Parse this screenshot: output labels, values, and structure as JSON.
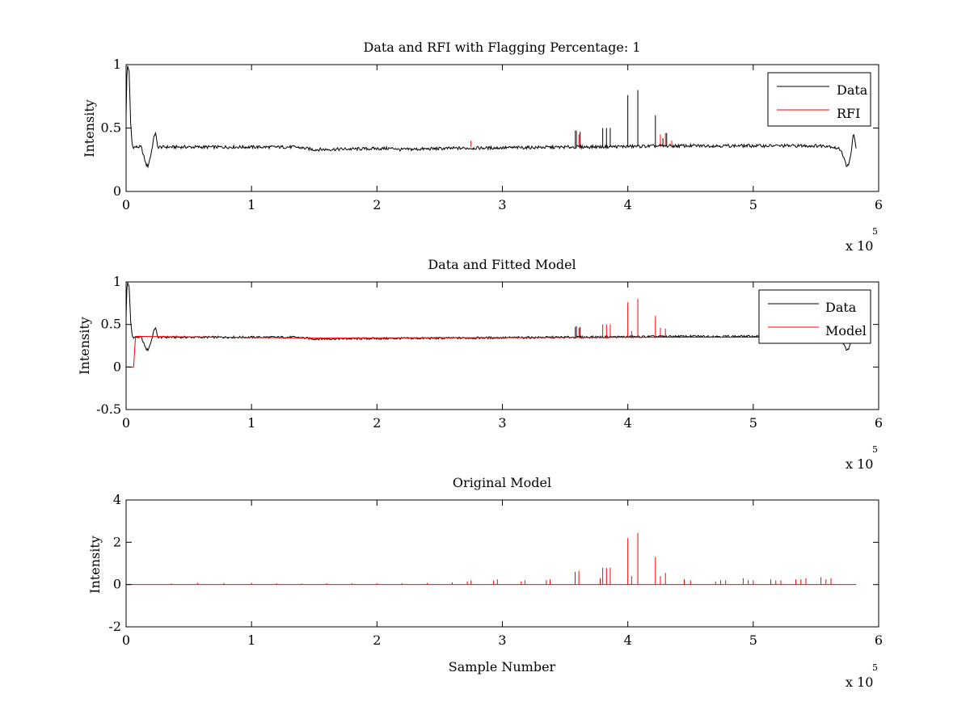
{
  "figure": {
    "background": "#ffffff"
  },
  "colors": {
    "data": "#000000",
    "model": "#ff0000",
    "axes": "#000000"
  },
  "chart_data": [
    {
      "type": "line",
      "title": "Data and RFI with Flagging Percentage: 1",
      "xlabel": "",
      "ylabel": "Intensity",
      "xlim": [
        0,
        600000
      ],
      "ylim": [
        0,
        1
      ],
      "xticks": [
        0,
        1,
        2,
        3,
        4,
        5,
        6
      ],
      "yticks": [
        0,
        0.5,
        1
      ],
      "xtick_labels": [
        "0",
        "1",
        "2",
        "3",
        "4",
        "5",
        "6"
      ],
      "ytick_labels": [
        "0",
        "0.5",
        "1"
      ],
      "x_exponent_label": "x 10",
      "x_exponent_power": "5",
      "legend_position": "top-right",
      "legend": [
        "Data",
        "RFI"
      ],
      "series": [
        {
          "name": "Data",
          "color": "#000000",
          "baseline": 0.35,
          "profile": [
            [
              0,
              0.6
            ],
            [
              800,
              1.0
            ],
            [
              2500,
              0.95
            ],
            [
              3500,
              0.55
            ],
            [
              5000,
              0.35
            ],
            [
              12000,
              0.35
            ],
            [
              16000,
              0.21
            ],
            [
              17500,
              0.2
            ],
            [
              20000,
              0.3
            ],
            [
              22000,
              0.42
            ],
            [
              23500,
              0.47
            ],
            [
              25000,
              0.35
            ],
            [
              135000,
              0.35
            ],
            [
              150000,
              0.33
            ],
            [
              215000,
              0.34
            ],
            [
              217000,
              0.33
            ],
            [
              260000,
              0.34
            ],
            [
              450000,
              0.36
            ],
            [
              560000,
              0.36
            ],
            [
              570000,
              0.33
            ],
            [
              574000,
              0.21
            ],
            [
              576000,
              0.2
            ],
            [
              578000,
              0.3
            ],
            [
              580000,
              0.47
            ],
            [
              582000,
              0.33
            ]
          ],
          "spikes": [
            [
              359000,
              0.48
            ],
            [
              362000,
              0.47
            ],
            [
              380000,
              0.5
            ],
            [
              383000,
              0.5
            ],
            [
              386000,
              0.5
            ],
            [
              400000,
              0.76
            ],
            [
              408000,
              0.8
            ],
            [
              422000,
              0.6
            ],
            [
              428000,
              0.42
            ],
            [
              431000,
              0.46
            ]
          ]
        },
        {
          "name": "RFI",
          "color": "#ff0000",
          "spikes": [
            [
              275000,
              0.4
            ],
            [
              358000,
              0.48
            ],
            [
              361000,
              0.45
            ],
            [
              426000,
              0.45
            ],
            [
              430000,
              0.46
            ],
            [
              435000,
              0.4
            ]
          ]
        }
      ]
    },
    {
      "type": "line",
      "title": "Data and Fitted Model",
      "xlabel": "",
      "ylabel": "Intensity",
      "xlim": [
        0,
        600000
      ],
      "ylim": [
        -0.5,
        1
      ],
      "xticks": [
        0,
        1,
        2,
        3,
        4,
        5,
        6
      ],
      "yticks": [
        -0.5,
        0,
        0.5,
        1
      ],
      "xtick_labels": [
        "0",
        "1",
        "2",
        "3",
        "4",
        "5",
        "6"
      ],
      "ytick_labels": [
        "-0.5",
        "0",
        "0.5",
        "1"
      ],
      "x_exponent_label": "x 10",
      "x_exponent_power": "5",
      "legend_position": "top-right",
      "legend": [
        "Data",
        "Model"
      ],
      "series": [
        {
          "name": "Data",
          "color": "#000000",
          "baseline": 0.35,
          "profile": [
            [
              0,
              0.6
            ],
            [
              800,
              1.0
            ],
            [
              2500,
              0.95
            ],
            [
              3500,
              0.55
            ],
            [
              5000,
              0.35
            ],
            [
              12000,
              0.35
            ],
            [
              16000,
              0.21
            ],
            [
              17500,
              0.2
            ],
            [
              20000,
              0.3
            ],
            [
              22000,
              0.42
            ],
            [
              23500,
              0.47
            ],
            [
              25000,
              0.35
            ],
            [
              135000,
              0.35
            ],
            [
              150000,
              0.33
            ],
            [
              260000,
              0.34
            ],
            [
              450000,
              0.36
            ],
            [
              560000,
              0.36
            ],
            [
              570000,
              0.33
            ],
            [
              574000,
              0.21
            ],
            [
              576000,
              0.2
            ],
            [
              578000,
              0.3
            ],
            [
              580000,
              0.47
            ],
            [
              582000,
              0.33
            ]
          ],
          "spikes": [
            [
              359000,
              0.48
            ],
            [
              362000,
              0.47
            ]
          ]
        },
        {
          "name": "Model",
          "color": "#ff0000",
          "profile": [
            [
              0,
              0.0
            ],
            [
              6000,
              0.0
            ],
            [
              6500,
              0.36
            ],
            [
              150000,
              0.34
            ],
            [
              450000,
              0.35
            ],
            [
              580000,
              0.35
            ]
          ],
          "spikes": [
            [
              358000,
              0.47
            ],
            [
              361000,
              0.46
            ],
            [
              380000,
              0.5
            ],
            [
              383000,
              0.5
            ],
            [
              386000,
              0.5
            ],
            [
              400000,
              0.76
            ],
            [
              403000,
              0.42
            ],
            [
              408000,
              0.8
            ],
            [
              422000,
              0.6
            ],
            [
              426000,
              0.46
            ],
            [
              430000,
              0.45
            ]
          ]
        }
      ]
    },
    {
      "type": "line",
      "title": "Original Model",
      "xlabel": "Sample Number",
      "ylabel": "Intensity",
      "xlim": [
        0,
        600000
      ],
      "ylim": [
        -2,
        4
      ],
      "xticks": [
        0,
        1,
        2,
        3,
        4,
        5,
        6
      ],
      "yticks": [
        -2,
        0,
        2,
        4
      ],
      "xtick_labels": [
        "0",
        "1",
        "2",
        "3",
        "4",
        "5",
        "6"
      ],
      "ytick_labels": [
        "-2",
        "0",
        "2",
        "4"
      ],
      "x_exponent_label": "x 10",
      "x_exponent_power": "5",
      "series": [
        {
          "name": "Model",
          "color": "#ff0000",
          "profile": [
            [
              0,
              0.0
            ],
            [
              582000,
              0.0
            ]
          ],
          "spikes": [
            [
              36000,
              0.05
            ],
            [
              57000,
              0.08
            ],
            [
              78000,
              0.08
            ],
            [
              100000,
              0.08
            ],
            [
              120000,
              0.06
            ],
            [
              140000,
              0.05
            ],
            [
              160000,
              0.06
            ],
            [
              180000,
              0.06
            ],
            [
              200000,
              0.06
            ],
            [
              220000,
              0.06
            ],
            [
              240000,
              0.07
            ],
            [
              260000,
              0.1
            ],
            [
              272000,
              0.15
            ],
            [
              275000,
              0.2
            ],
            [
              293000,
              0.2
            ],
            [
              296000,
              0.25
            ],
            [
              315000,
              0.15
            ],
            [
              318000,
              0.2
            ],
            [
              335000,
              0.2
            ],
            [
              338000,
              0.25
            ],
            [
              358000,
              0.6
            ],
            [
              361000,
              0.65
            ],
            [
              378000,
              0.3
            ],
            [
              380000,
              0.8
            ],
            [
              383000,
              0.78
            ],
            [
              386000,
              0.8
            ],
            [
              400000,
              2.2
            ],
            [
              403000,
              0.4
            ],
            [
              408000,
              2.45
            ],
            [
              422000,
              1.3
            ],
            [
              426000,
              0.4
            ],
            [
              430000,
              0.55
            ],
            [
              445000,
              0.25
            ],
            [
              450000,
              0.2
            ],
            [
              470000,
              0.15
            ],
            [
              474000,
              0.2
            ],
            [
              478000,
              0.2
            ],
            [
              492000,
              0.3
            ],
            [
              496000,
              0.2
            ],
            [
              500000,
              0.2
            ],
            [
              514000,
              0.25
            ],
            [
              518000,
              0.2
            ],
            [
              522000,
              0.2
            ],
            [
              534000,
              0.25
            ],
            [
              538000,
              0.25
            ],
            [
              542000,
              0.3
            ],
            [
              554000,
              0.35
            ],
            [
              558000,
              0.25
            ],
            [
              562000,
              0.3
            ]
          ]
        }
      ]
    }
  ]
}
